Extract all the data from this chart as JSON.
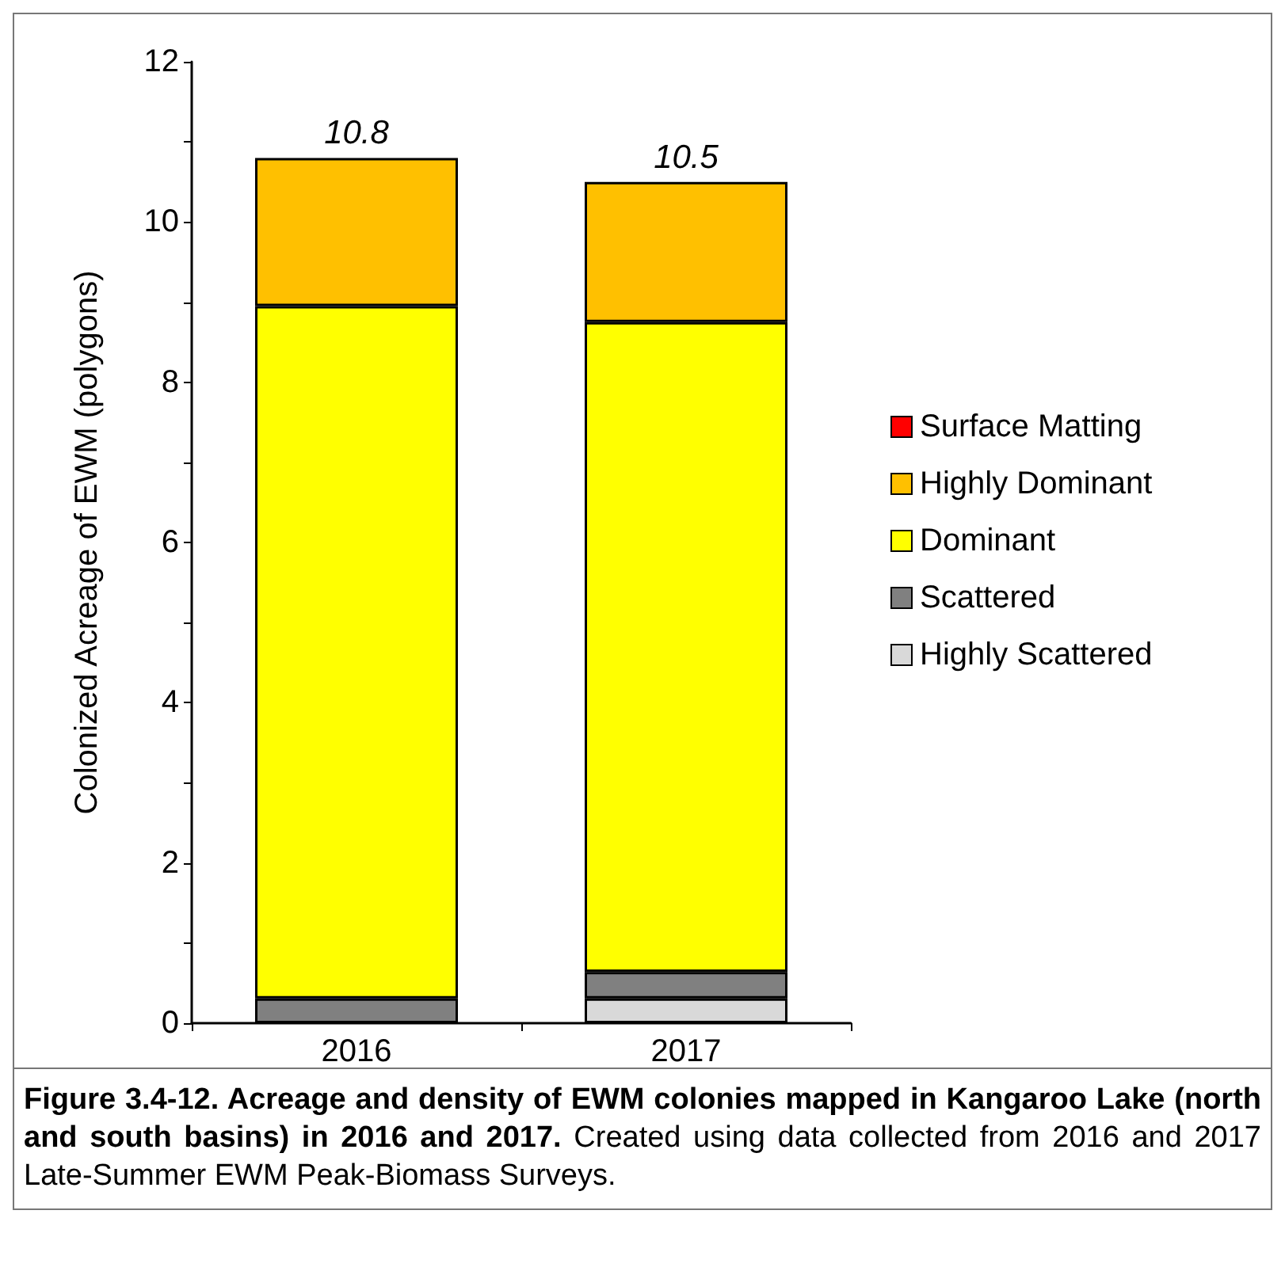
{
  "chart_data": {
    "type": "bar",
    "stacked": true,
    "title": "Figure 3.4-12.  Acreage and density of EWM colonies mapped in Kangaroo Lake (north and south basins) in 2016 and 2017.",
    "annotations": [
      "Created using data collected from 2016 and 2017 Late-Summer EWM Peak-Biomass Surveys."
    ],
    "ylabel": "Colonized Acreage of EWM (polygons)",
    "categories": [
      "2016",
      "2017"
    ],
    "series": [
      {
        "name": "Highly Scattered",
        "color": "#d9d9d9",
        "values": [
          0,
          0.31
        ]
      },
      {
        "name": "Scattered",
        "color": "#808080",
        "values": [
          0.31,
          0.33
        ]
      },
      {
        "name": "Dominant",
        "color": "#ffff00",
        "values": [
          8.64,
          8.11
        ]
      },
      {
        "name": "Highly Dominant",
        "color": "#ffc000",
        "values": [
          1.85,
          1.75
        ]
      },
      {
        "name": "Surface Matting",
        "color": "#ff0000",
        "values": [
          0,
          0
        ]
      }
    ],
    "totals": [
      "10.8",
      "10.5"
    ],
    "ylim": [
      0,
      12
    ],
    "yticks": [
      0,
      {
        "value": 1,
        "label": null
      },
      2,
      {
        "value": 3,
        "label": null
      },
      4,
      {
        "value": 5,
        "label": null
      },
      6,
      {
        "value": 7,
        "label": null
      },
      8,
      {
        "value": 9,
        "label": null
      },
      10,
      {
        "value": 11,
        "label": null
      },
      12
    ],
    "grid": false,
    "legend": "right"
  }
}
